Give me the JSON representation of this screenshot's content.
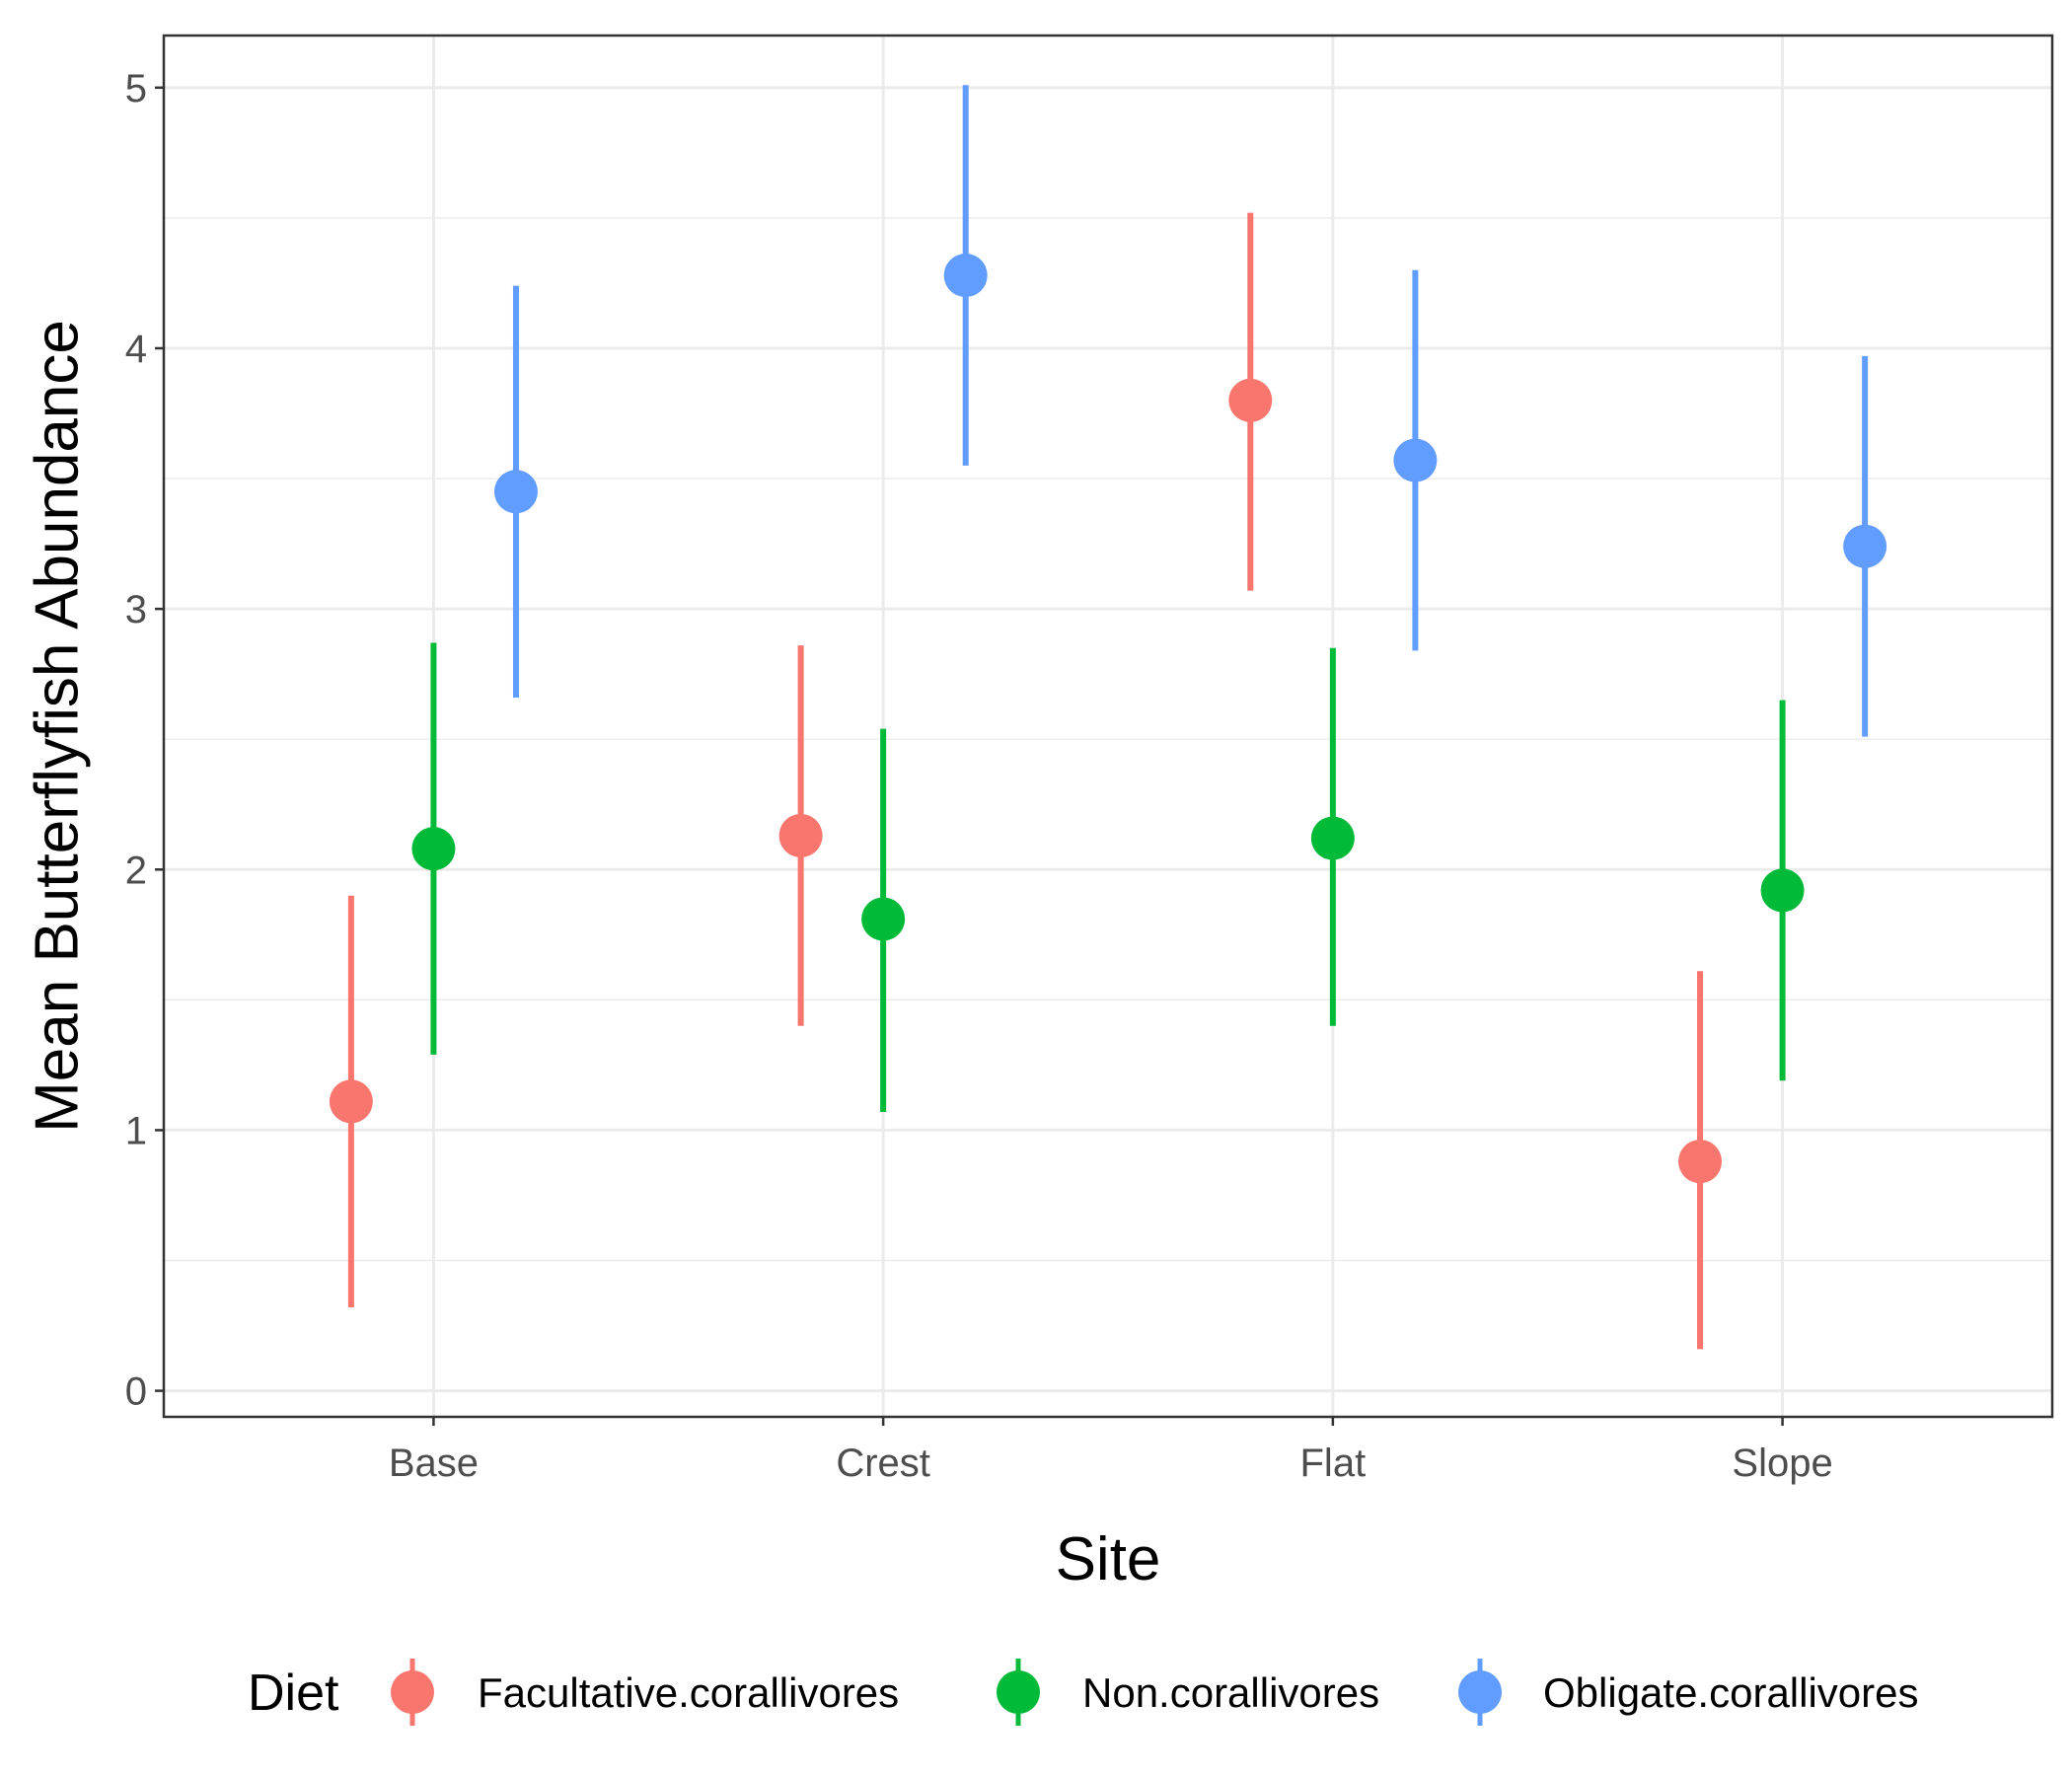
{
  "chart_data": {
    "type": "scatter",
    "subtype": "pointrange",
    "title": "",
    "xlabel": "Site",
    "ylabel": "Mean Butterflyfish Abundance",
    "categories": [
      "Base",
      "Crest",
      "Flat",
      "Slope"
    ],
    "ylim": [
      -0.1,
      5.2
    ],
    "yticks": [
      0,
      1,
      2,
      3,
      4,
      5
    ],
    "y_tick_labels": [
      "0",
      "1",
      "2",
      "3",
      "4",
      "5"
    ],
    "grid": true,
    "legend": {
      "title": "Diet",
      "position": "bottom"
    },
    "series": [
      {
        "name": "Facultative.corallivores",
        "color": "#F8766D",
        "values": [
          1.11,
          2.13,
          3.8,
          0.88
        ],
        "lower": [
          0.32,
          1.4,
          3.07,
          0.16
        ],
        "upper": [
          1.9,
          2.86,
          4.52,
          1.61
        ]
      },
      {
        "name": "Non.corallivores",
        "color": "#00BA38",
        "values": [
          2.08,
          1.81,
          2.12,
          1.92
        ],
        "lower": [
          1.29,
          1.07,
          1.4,
          1.19
        ],
        "upper": [
          2.87,
          2.54,
          2.85,
          2.65
        ]
      },
      {
        "name": "Obligate.corallivores",
        "color": "#619CFF",
        "values": [
          3.45,
          4.28,
          3.57,
          3.24
        ],
        "lower": [
          2.66,
          3.55,
          2.84,
          2.51
        ],
        "upper": [
          4.24,
          5.01,
          4.3,
          3.97
        ]
      }
    ]
  }
}
